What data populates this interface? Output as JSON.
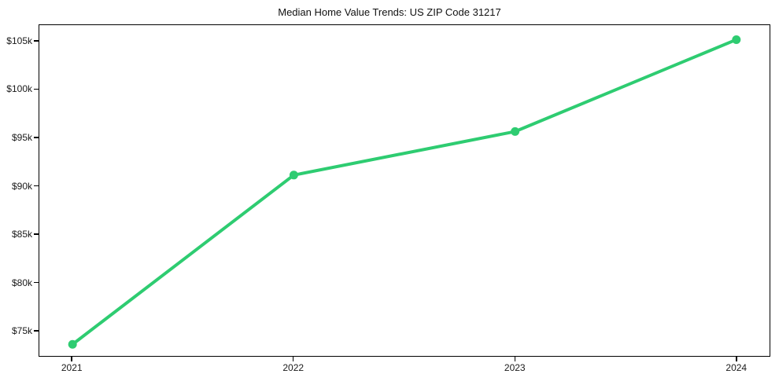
{
  "title": "Median Home Value Trends: US ZIP Code 31217",
  "colors": {
    "line": "#2ecc71",
    "marker": "#2ecc71",
    "spine": "#000000",
    "tick_text": "#1a1a1a",
    "background": "#ffffff"
  },
  "chart_data": {
    "type": "line",
    "title": "Median Home Value Trends: US ZIP Code 31217",
    "x": [
      "2021",
      "2022",
      "2023",
      "2024"
    ],
    "series": [
      {
        "name": "Median Home Value",
        "values": [
          73700,
          91200,
          95700,
          105200
        ]
      }
    ],
    "xlabel": "",
    "ylabel": "",
    "ylim": [
      72500,
      106700
    ],
    "yticks": [
      75000,
      80000,
      85000,
      90000,
      95000,
      100000,
      105000
    ],
    "ytick_labels": [
      "$75k",
      "$80k",
      "$85k",
      "$90k",
      "$95k",
      "$100k",
      "$105k"
    ],
    "xtick_labels": [
      "2021",
      "2022",
      "2023",
      "2024"
    ],
    "grid": false,
    "legend": "none",
    "marker": "circle",
    "line_width": 4,
    "marker_radius": 5.5
  }
}
